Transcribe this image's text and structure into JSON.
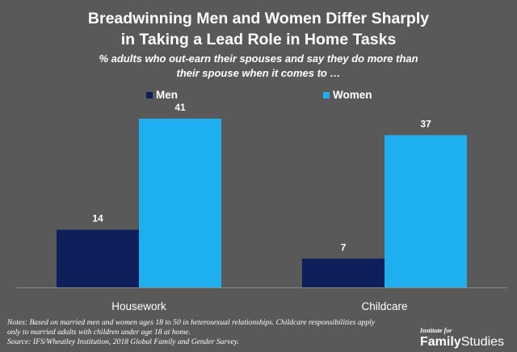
{
  "chart_data": {
    "type": "bar",
    "title": "Breadwinning Men and Women Differ Sharply in Taking a Lead Role in Home Tasks",
    "title_lines": [
      "Breadwinning Men and Women Differ Sharply",
      "in Taking a Lead Role in Home Tasks"
    ],
    "subtitle_lines": [
      "% adults who out-earn their spouses and say they do more than",
      "their spouse when it comes to …"
    ],
    "categories": [
      "Housework",
      "Childcare"
    ],
    "series": [
      {
        "name": "Men",
        "values": [
          14,
          7
        ],
        "color": "#0e1f5b"
      },
      {
        "name": "Women",
        "values": [
          41,
          37
        ],
        "color": "#1eaff0"
      }
    ],
    "ylim": [
      0,
      41
    ],
    "grid": false,
    "legend_position": "top",
    "data_labels": true
  },
  "notes": [
    "Notes: Based on married men and women ages 18 to 50 in heterosexual relationships. Childcare responsibilities apply",
    "only to married adults with children under age 18 at home.",
    "Source:  IFS/Wheatley Institution, 2018 Global Family and Gender Survey."
  ],
  "logo": {
    "small": "Institute for",
    "bold": "Family",
    "regular": "Studies"
  },
  "background": "#595959"
}
